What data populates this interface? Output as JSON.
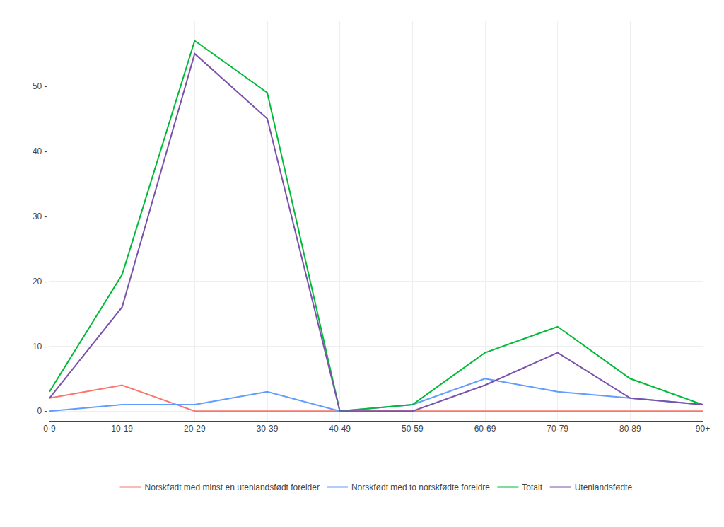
{
  "chart_data": {
    "type": "line",
    "categories": [
      "0-9",
      "10-19",
      "20-29",
      "30-39",
      "40-49",
      "50-59",
      "60-69",
      "70-79",
      "80-89",
      "90+"
    ],
    "series": [
      {
        "name": "Norskfødt med minst en utenlandsfødt forelder",
        "color": "#f8766d",
        "values": [
          2,
          4,
          0,
          0,
          0,
          0,
          0,
          0,
          0,
          0
        ]
      },
      {
        "name": "Norskfødt med to norskfødte foreldre",
        "color": "#619cff",
        "values": [
          0,
          1,
          1,
          3,
          0,
          1,
          5,
          3,
          2,
          1
        ]
      },
      {
        "name": "Totalt",
        "color": "#00ba38",
        "values": [
          3,
          21,
          57,
          49,
          0,
          1,
          9,
          13,
          5,
          1
        ]
      },
      {
        "name": "Utenlandsfødte",
        "color": "#7b52ab",
        "values": [
          2,
          16,
          55,
          45,
          0,
          0,
          4,
          9,
          2,
          1
        ]
      }
    ],
    "ylim": [
      -1.5,
      60
    ],
    "yticks": [
      {
        "value": 0,
        "label": "0 -"
      },
      {
        "value": 10,
        "label": "10 -"
      },
      {
        "value": 20,
        "label": "20 -"
      },
      {
        "value": 30,
        "label": "30 -"
      },
      {
        "value": 40,
        "label": "40 -"
      },
      {
        "value": 50,
        "label": "50 -"
      }
    ],
    "grid": true,
    "legend": "bottom"
  }
}
